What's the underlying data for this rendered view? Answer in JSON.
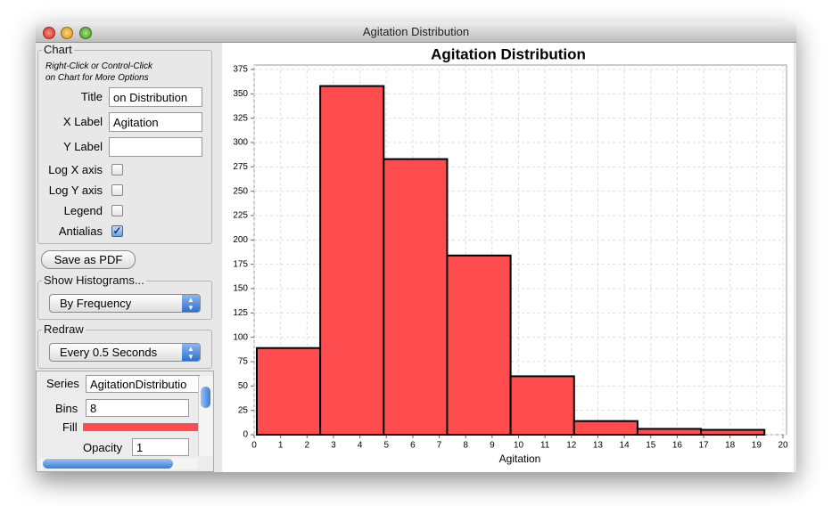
{
  "window": {
    "title": "Agitation Distribution"
  },
  "chart_settings": {
    "legend": "Chart",
    "hint": [
      "Right-Click or Control-Click",
      "on Chart for More Options"
    ],
    "fields": [
      {
        "label": "Title",
        "value": "on Distribution"
      },
      {
        "label": "X Label",
        "value": "Agitation"
      },
      {
        "label": "Y Label"
      }
    ],
    "checkboxes": [
      {
        "label": "Log X axis",
        "checked": false
      },
      {
        "label": "Log Y axis",
        "checked": false
      },
      {
        "label": "Legend",
        "checked": false
      },
      {
        "label": "Antialias",
        "checked": true
      }
    ]
  },
  "save_button": "Save as PDF",
  "show_histograms": {
    "legend": "Show Histograms...",
    "selected": "By Frequency"
  },
  "redraw": {
    "legend": "Redraw",
    "selected": "Every 0.5 Seconds"
  },
  "series_panel": {
    "series_label": "Series",
    "series_value": "AgitationDistributio",
    "bins_label": "Bins",
    "bins_value": 8,
    "fill_label": "Fill",
    "fill_color": "#ff4d4f",
    "opacity_label": "Opacity",
    "opacity_value": 1
  },
  "chart_data": {
    "type": "histogram",
    "title": "Agitation Distribution",
    "x_label": "Agitation",
    "bins": [
      0.1,
      2.5,
      4.9,
      7.3,
      9.7,
      12.1,
      14.5,
      16.9,
      19.3
    ],
    "values": [
      89,
      358,
      283,
      184,
      60,
      14,
      6,
      5
    ],
    "color": "#ff4d4f",
    "edge_color": "#000000",
    "xlim": [
      0,
      20
    ],
    "xticks": [
      0,
      1,
      2,
      3,
      4,
      5,
      6,
      7,
      8,
      9,
      10,
      11,
      12,
      13,
      14,
      15,
      16,
      17,
      18,
      19,
      20
    ],
    "ylim": [
      0,
      375
    ],
    "yticks": [
      0,
      25,
      50,
      75,
      100,
      125,
      150,
      175,
      200,
      225,
      250,
      275,
      300,
      325,
      350,
      375
    ],
    "grid": true
  }
}
